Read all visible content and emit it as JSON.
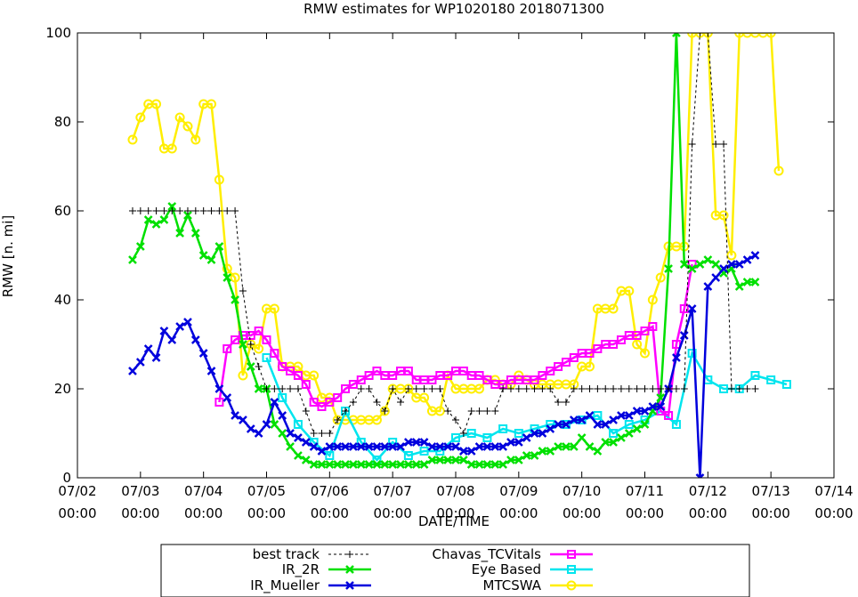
{
  "chart_data": {
    "type": "line",
    "title": "RMW estimates for WP1020180 2018071300",
    "xlabel": "DATE/TIME",
    "ylabel": "RMW [n. mi]",
    "xlim": [
      0,
      12
    ],
    "ylim": [
      0,
      100
    ],
    "x_unit": "days since 07/02 00:00",
    "x_ticks": [
      {
        "value": 0,
        "line1": "07/02",
        "line2": "00:00"
      },
      {
        "value": 1,
        "line1": "07/03",
        "line2": "00:00"
      },
      {
        "value": 2,
        "line1": "07/04",
        "line2": "00:00"
      },
      {
        "value": 3,
        "line1": "07/05",
        "line2": "00:00"
      },
      {
        "value": 4,
        "line1": "07/06",
        "line2": "00:00"
      },
      {
        "value": 5,
        "line1": "07/07",
        "line2": "00:00"
      },
      {
        "value": 6,
        "line1": "07/08",
        "line2": "00:00"
      },
      {
        "value": 7,
        "line1": "07/09",
        "line2": "00:00"
      },
      {
        "value": 8,
        "line1": "07/10",
        "line2": "00:00"
      },
      {
        "value": 9,
        "line1": "07/11",
        "line2": "00:00"
      },
      {
        "value": 10,
        "line1": "07/12",
        "line2": "00:00"
      },
      {
        "value": 11,
        "line1": "07/13",
        "line2": "00:00"
      },
      {
        "value": 12,
        "line1": "07/14",
        "line2": "00:00"
      }
    ],
    "y_ticks": [
      0,
      20,
      40,
      60,
      80,
      100
    ],
    "series": [
      {
        "name": "best track",
        "color": "#000000",
        "marker": "plus",
        "dashed": true,
        "x": [
          0.875,
          1.0,
          1.125,
          1.25,
          1.375,
          1.5,
          1.625,
          1.75,
          1.875,
          2.0,
          2.125,
          2.25,
          2.375,
          2.5,
          2.625,
          2.75,
          2.875,
          3.0,
          3.125,
          3.25,
          3.375,
          3.5,
          3.625,
          3.75,
          3.875,
          4.0,
          4.125,
          4.25,
          4.375,
          4.5,
          4.625,
          4.75,
          4.875,
          5.0,
          5.125,
          5.25,
          5.375,
          5.5,
          5.625,
          5.75,
          5.875,
          6.0,
          6.125,
          6.25,
          6.375,
          6.5,
          6.625,
          6.75,
          6.875,
          7.0,
          7.125,
          7.25,
          7.375,
          7.5,
          7.625,
          7.75,
          7.875,
          8.0,
          8.125,
          8.25,
          8.375,
          8.5,
          8.625,
          8.75,
          8.875,
          9.0,
          9.125,
          9.25,
          9.375,
          9.5,
          9.625,
          9.75,
          9.875,
          10.0,
          10.125,
          10.25,
          10.375,
          10.5,
          10.625,
          10.75
        ],
        "y": [
          60,
          60,
          60,
          60,
          60,
          60,
          60,
          60,
          60,
          60,
          60,
          60,
          60,
          60,
          42,
          30,
          25,
          20,
          20,
          20,
          20,
          20,
          15,
          10,
          10,
          10,
          13,
          15,
          17,
          20,
          20,
          17,
          15,
          20,
          17,
          20,
          20,
          20,
          20,
          20,
          15,
          13,
          10,
          15,
          15,
          15,
          15,
          20,
          20,
          20,
          20,
          20,
          20,
          20,
          17,
          17,
          20,
          20,
          20,
          20,
          20,
          20,
          20,
          20,
          20,
          20,
          20,
          20,
          20,
          20,
          20,
          75,
          100,
          100,
          75,
          75,
          20,
          20,
          20,
          20
        ]
      },
      {
        "name": "IR_2R",
        "color": "#00e000",
        "marker": "x",
        "dashed": false,
        "x": [
          0.875,
          1.0,
          1.125,
          1.25,
          1.375,
          1.5,
          1.625,
          1.75,
          1.875,
          2.0,
          2.125,
          2.25,
          2.375,
          2.5,
          2.625,
          2.75,
          2.875,
          3.0,
          3.125,
          3.25,
          3.375,
          3.5,
          3.625,
          3.75,
          3.875,
          4.0,
          4.125,
          4.25,
          4.375,
          4.5,
          4.625,
          4.75,
          4.875,
          5.0,
          5.125,
          5.25,
          5.375,
          5.5,
          5.625,
          5.75,
          5.875,
          6.0,
          6.125,
          6.25,
          6.375,
          6.5,
          6.625,
          6.75,
          6.875,
          7.0,
          7.125,
          7.25,
          7.375,
          7.5,
          7.625,
          7.75,
          7.875,
          8.0,
          8.125,
          8.25,
          8.375,
          8.5,
          8.625,
          8.75,
          8.875,
          9.0,
          9.125,
          9.25,
          9.375,
          9.5,
          9.625,
          9.75,
          9.875,
          10.0,
          10.125,
          10.25,
          10.375,
          10.5,
          10.625,
          10.75
        ],
        "y": [
          49,
          52,
          58,
          57,
          58,
          61,
          55,
          59,
          55,
          50,
          49,
          52,
          45,
          40,
          30,
          25,
          20,
          20,
          12,
          10,
          7,
          5,
          4,
          3,
          3,
          3,
          3,
          3,
          3,
          3,
          3,
          3,
          3,
          3,
          3,
          3,
          3,
          3,
          4,
          4,
          4,
          4,
          4,
          3,
          3,
          3,
          3,
          3,
          4,
          4,
          5,
          5,
          6,
          6,
          7,
          7,
          7,
          9,
          7,
          6,
          8,
          8,
          9,
          10,
          11,
          12,
          15,
          18,
          47,
          100,
          48,
          47,
          48,
          49,
          48,
          46,
          47,
          43,
          44,
          44
        ]
      },
      {
        "name": "IR_Mueller",
        "color": "#0000dd",
        "marker": "x",
        "dashed": false,
        "x": [
          0.875,
          1.0,
          1.125,
          1.25,
          1.375,
          1.5,
          1.625,
          1.75,
          1.875,
          2.0,
          2.125,
          2.25,
          2.375,
          2.5,
          2.625,
          2.75,
          2.875,
          3.0,
          3.125,
          3.25,
          3.375,
          3.5,
          3.625,
          3.75,
          3.875,
          4.0,
          4.125,
          4.25,
          4.375,
          4.5,
          4.625,
          4.75,
          4.875,
          5.0,
          5.125,
          5.25,
          5.375,
          5.5,
          5.625,
          5.75,
          5.875,
          6.0,
          6.125,
          6.25,
          6.375,
          6.5,
          6.625,
          6.75,
          6.875,
          7.0,
          7.125,
          7.25,
          7.375,
          7.5,
          7.625,
          7.75,
          7.875,
          8.0,
          8.125,
          8.25,
          8.375,
          8.5,
          8.625,
          8.75,
          8.875,
          9.0,
          9.125,
          9.25,
          9.375,
          9.5,
          9.625,
          9.75,
          9.875,
          10.0,
          10.125,
          10.25,
          10.375,
          10.5,
          10.625,
          10.75
        ],
        "y": [
          24,
          26,
          29,
          27,
          33,
          31,
          34,
          35,
          31,
          28,
          24,
          20,
          18,
          14,
          13,
          11,
          10,
          12,
          17,
          14,
          10,
          9,
          8,
          7,
          6,
          7,
          7,
          7,
          7,
          7,
          7,
          7,
          7,
          7,
          7,
          8,
          8,
          8,
          7,
          7,
          7,
          7,
          6,
          6,
          7,
          7,
          7,
          7,
          8,
          8,
          9,
          10,
          10,
          11,
          12,
          12,
          13,
          13,
          14,
          12,
          12,
          13,
          14,
          14,
          15,
          15,
          16,
          16,
          20,
          27,
          32,
          38,
          0,
          43,
          45,
          47,
          48,
          48,
          49,
          50
        ]
      },
      {
        "name": "Chavas_TCVitals",
        "color": "#ff00ff",
        "marker": "square",
        "dashed": false,
        "x": [
          2.25,
          2.375,
          2.5,
          2.625,
          2.75,
          2.875,
          3.0,
          3.125,
          3.25,
          3.375,
          3.5,
          3.625,
          3.75,
          3.875,
          4.0,
          4.125,
          4.25,
          4.375,
          4.5,
          4.625,
          4.75,
          4.875,
          5.0,
          5.125,
          5.25,
          5.375,
          5.5,
          5.625,
          5.75,
          5.875,
          6.0,
          6.125,
          6.25,
          6.375,
          6.5,
          6.625,
          6.75,
          6.875,
          7.0,
          7.125,
          7.25,
          7.375,
          7.5,
          7.625,
          7.75,
          7.875,
          8.0,
          8.125,
          8.25,
          8.375,
          8.5,
          8.625,
          8.75,
          8.875,
          9.0,
          9.125,
          9.25,
          9.375,
          9.5,
          9.625,
          9.75
        ],
        "y": [
          17,
          29,
          31,
          32,
          32,
          33,
          31,
          28,
          25,
          24,
          23,
          21,
          17,
          16,
          17,
          18,
          20,
          21,
          22,
          23,
          24,
          23,
          23,
          24,
          24,
          22,
          22,
          22,
          23,
          23,
          24,
          24,
          23,
          23,
          22,
          21,
          21,
          22,
          22,
          22,
          22,
          23,
          24,
          25,
          26,
          27,
          28,
          28,
          29,
          30,
          30,
          31,
          32,
          32,
          33,
          34,
          15,
          14,
          30,
          38,
          48
        ]
      },
      {
        "name": "Eye Based",
        "color": "#00e5ee",
        "marker": "square",
        "dashed": false,
        "x": [
          3.0,
          3.25,
          3.5,
          3.75,
          4.0,
          4.25,
          4.5,
          4.75,
          5.0,
          5.25,
          5.5,
          5.75,
          6.0,
          6.25,
          6.5,
          6.75,
          7.0,
          7.25,
          7.5,
          7.75,
          8.0,
          8.25,
          8.5,
          8.75,
          9.0,
          9.25,
          9.5,
          9.75,
          10.0,
          10.25,
          10.5,
          10.75,
          11.0,
          11.25
        ],
        "y": [
          27,
          18,
          12,
          8,
          5,
          15,
          8,
          4,
          8,
          5,
          6,
          6,
          9,
          10,
          9,
          11,
          10,
          11,
          12,
          12,
          13,
          14,
          10,
          12,
          13,
          15,
          12,
          28,
          22,
          20,
          20,
          23,
          22,
          21
        ]
      },
      {
        "name": "MTCSWA",
        "color": "#ffee00",
        "marker": "circle",
        "dashed": false,
        "x": [
          0.875,
          1.0,
          1.125,
          1.25,
          1.375,
          1.5,
          1.625,
          1.75,
          1.875,
          2.0,
          2.125,
          2.25,
          2.375,
          2.5,
          2.625,
          2.75,
          2.875,
          3.0,
          3.125,
          3.25,
          3.375,
          3.5,
          3.625,
          3.75,
          3.875,
          4.0,
          4.125,
          4.25,
          4.375,
          4.5,
          4.625,
          4.75,
          4.875,
          5.0,
          5.125,
          5.25,
          5.375,
          5.5,
          5.625,
          5.75,
          5.875,
          6.0,
          6.125,
          6.25,
          6.375,
          6.5,
          6.625,
          6.75,
          6.875,
          7.0,
          7.125,
          7.25,
          7.375,
          7.5,
          7.625,
          7.75,
          7.875,
          8.0,
          8.125,
          8.25,
          8.375,
          8.5,
          8.625,
          8.75,
          8.875,
          9.0,
          9.125,
          9.25,
          9.375,
          9.5,
          9.625,
          9.75,
          9.875,
          10.0,
          10.125,
          10.25,
          10.375,
          10.5,
          10.625,
          10.75,
          10.875,
          11.0,
          11.125
        ],
        "y": [
          76,
          81,
          84,
          84,
          74,
          74,
          81,
          79,
          76,
          84,
          84,
          67,
          47,
          45,
          23,
          30,
          29,
          38,
          38,
          25,
          25,
          25,
          23,
          23,
          18,
          18,
          13,
          13,
          13,
          13,
          13,
          13,
          15,
          20,
          20,
          20,
          18,
          18,
          15,
          15,
          23,
          20,
          20,
          20,
          20,
          22,
          22,
          21,
          21,
          23,
          22,
          21,
          21,
          21,
          21,
          21,
          21,
          25,
          25,
          38,
          38,
          38,
          42,
          42,
          30,
          28,
          40,
          45,
          52,
          52,
          52,
          100,
          100,
          100,
          59,
          59,
          50,
          100,
          100,
          100,
          100,
          100,
          69
        ]
      }
    ],
    "legend": {
      "placement": "bottom-center",
      "entries": [
        "best track",
        "IR_2R",
        "IR_Mueller",
        "Chavas_TCVitals",
        "Eye Based",
        "MTCSWA"
      ]
    }
  }
}
